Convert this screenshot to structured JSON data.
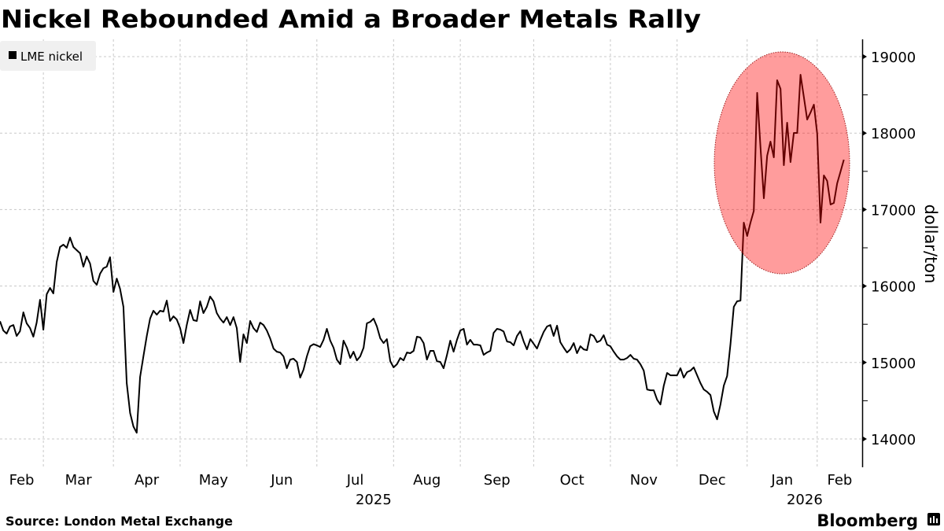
{
  "chart_data": {
    "type": "line",
    "title": "Nickel Rebounded Amid a Broader Metals Rally",
    "ylabel": "dollar/ton",
    "xlabel": "",
    "ylim": [
      13850,
      19200
    ],
    "y_axis_side": "right",
    "yticks": [
      14000,
      15000,
      16000,
      17000,
      18000,
      19000
    ],
    "xtick_labels": [
      "Feb",
      "Mar",
      "Apr",
      "May",
      "Jun",
      "Jul",
      "Aug",
      "Sep",
      "Oct",
      "Nov",
      "Dec",
      "Jan",
      "Feb"
    ],
    "year_labels": [
      "2025",
      "2026"
    ],
    "grid": true,
    "legend": {
      "position": "top-left",
      "entries": [
        "LME nickel"
      ]
    },
    "highlight": {
      "shape": "ellipse",
      "covers": [
        "2025-12-31",
        "2026-02-12"
      ],
      "color": "#ff0000"
    },
    "series": [
      {
        "name": "LME nickel",
        "color": "#000000",
        "points": [
          [
            "2025-02-12",
            15539
          ],
          [
            "2025-02-13",
            15419
          ],
          [
            "2025-02-14",
            15378
          ],
          [
            "2025-02-17",
            15471
          ],
          [
            "2025-02-18",
            15490
          ],
          [
            "2025-02-19",
            15347
          ],
          [
            "2025-02-20",
            15408
          ],
          [
            "2025-02-21",
            15656
          ],
          [
            "2025-02-24",
            15512
          ],
          [
            "2025-02-25",
            15450
          ],
          [
            "2025-02-26",
            15337
          ],
          [
            "2025-02-27",
            15522
          ],
          [
            "2025-02-28",
            15820
          ],
          [
            "2025-03-03",
            15429
          ],
          [
            "2025-03-04",
            15893
          ],
          [
            "2025-03-05",
            15975
          ],
          [
            "2025-03-06",
            15903
          ],
          [
            "2025-03-07",
            16315
          ],
          [
            "2025-03-10",
            16510
          ],
          [
            "2025-03-11",
            16541
          ],
          [
            "2025-03-12",
            16500
          ],
          [
            "2025-03-13",
            16634
          ],
          [
            "2025-03-14",
            16510
          ],
          [
            "2025-03-17",
            16469
          ],
          [
            "2025-03-18",
            16428
          ],
          [
            "2025-03-19",
            16253
          ],
          [
            "2025-03-20",
            16387
          ],
          [
            "2025-03-21",
            16294
          ],
          [
            "2025-03-24",
            16067
          ],
          [
            "2025-03-25",
            16016
          ],
          [
            "2025-03-26",
            16160
          ],
          [
            "2025-03-27",
            16232
          ],
          [
            "2025-03-28",
            16253
          ],
          [
            "2025-03-31",
            16377
          ],
          [
            "2025-04-01",
            15923
          ],
          [
            "2025-04-02",
            16098
          ],
          [
            "2025-04-03",
            15964
          ],
          [
            "2025-04-04",
            15728
          ],
          [
            "2025-04-07",
            14730
          ],
          [
            "2025-04-08",
            14339
          ],
          [
            "2025-04-09",
            14164
          ],
          [
            "2025-04-10",
            14081
          ],
          [
            "2025-04-11",
            14812
          ],
          [
            "2025-04-14",
            15080
          ],
          [
            "2025-04-15",
            15347
          ],
          [
            "2025-04-16",
            15574
          ],
          [
            "2025-04-17",
            15677
          ],
          [
            "2025-04-22",
            15625
          ],
          [
            "2025-04-23",
            15677
          ],
          [
            "2025-04-24",
            15666
          ],
          [
            "2025-04-25",
            15810
          ],
          [
            "2025-04-28",
            15543
          ],
          [
            "2025-04-29",
            15604
          ],
          [
            "2025-04-30",
            15563
          ],
          [
            "2025-05-01",
            15450
          ],
          [
            "2025-05-02",
            15254
          ],
          [
            "2025-05-06",
            15490
          ],
          [
            "2025-05-07",
            15687
          ],
          [
            "2025-05-08",
            15553
          ],
          [
            "2025-05-09",
            15543
          ],
          [
            "2025-05-12",
            15800
          ],
          [
            "2025-05-13",
            15646
          ],
          [
            "2025-05-14",
            15728
          ],
          [
            "2025-05-15",
            15862
          ],
          [
            "2025-05-16",
            15800
          ],
          [
            "2025-05-19",
            15646
          ],
          [
            "2025-05-20",
            15574
          ],
          [
            "2025-05-21",
            15522
          ],
          [
            "2025-05-22",
            15594
          ],
          [
            "2025-05-23",
            15490
          ],
          [
            "2025-05-27",
            15594
          ],
          [
            "2025-05-28",
            15450
          ],
          [
            "2025-05-29",
            15007
          ],
          [
            "2025-05-30",
            15368
          ],
          [
            "2025-06-02",
            15254
          ],
          [
            "2025-06-03",
            15543
          ],
          [
            "2025-06-04",
            15450
          ],
          [
            "2025-06-05",
            15399
          ],
          [
            "2025-06-06",
            15522
          ],
          [
            "2025-06-09",
            15490
          ],
          [
            "2025-06-10",
            15419
          ],
          [
            "2025-06-11",
            15316
          ],
          [
            "2025-06-12",
            15182
          ],
          [
            "2025-06-13",
            15141
          ],
          [
            "2025-06-16",
            15131
          ],
          [
            "2025-06-17",
            15080
          ],
          [
            "2025-06-18",
            14925
          ],
          [
            "2025-06-19",
            15038
          ],
          [
            "2025-06-20",
            15049
          ],
          [
            "2025-06-23",
            15007
          ],
          [
            "2025-06-24",
            14802
          ],
          [
            "2025-06-25",
            14905
          ],
          [
            "2025-06-26",
            15080
          ],
          [
            "2025-06-27",
            15213
          ],
          [
            "2025-06-30",
            15240
          ],
          [
            "2025-07-01",
            15224
          ],
          [
            "2025-07-02",
            15203
          ],
          [
            "2025-07-03",
            15296
          ],
          [
            "2025-07-04",
            15440
          ],
          [
            "2025-07-07",
            15286
          ],
          [
            "2025-07-08",
            15193
          ],
          [
            "2025-07-09",
            15038
          ],
          [
            "2025-07-10",
            14977
          ],
          [
            "2025-07-11",
            15286
          ],
          [
            "2025-07-14",
            15193
          ],
          [
            "2025-07-15",
            15059
          ],
          [
            "2025-07-16",
            15141
          ],
          [
            "2025-07-17",
            15028
          ],
          [
            "2025-07-18",
            15080
          ],
          [
            "2025-07-21",
            15193
          ],
          [
            "2025-07-22",
            15512
          ],
          [
            "2025-07-23",
            15532
          ],
          [
            "2025-07-24",
            15574
          ],
          [
            "2025-07-25",
            15471
          ],
          [
            "2025-07-28",
            15316
          ],
          [
            "2025-07-29",
            15254
          ],
          [
            "2025-07-30",
            15306
          ],
          [
            "2025-07-31",
            15018
          ],
          [
            "2025-08-01",
            14936
          ],
          [
            "2025-08-04",
            14977
          ],
          [
            "2025-08-05",
            15059
          ],
          [
            "2025-08-06",
            15028
          ],
          [
            "2025-08-07",
            15131
          ],
          [
            "2025-08-08",
            15121
          ],
          [
            "2025-08-11",
            15152
          ],
          [
            "2025-08-12",
            15337
          ],
          [
            "2025-08-13",
            15327
          ],
          [
            "2025-08-14",
            15254
          ],
          [
            "2025-08-15",
            15038
          ],
          [
            "2025-08-18",
            15152
          ],
          [
            "2025-08-19",
            15152
          ],
          [
            "2025-08-20",
            15018
          ],
          [
            "2025-08-21",
            15007
          ],
          [
            "2025-08-22",
            14925
          ],
          [
            "2025-08-26",
            15100
          ],
          [
            "2025-08-27",
            15286
          ],
          [
            "2025-08-28",
            15141
          ],
          [
            "2025-08-29",
            15296
          ],
          [
            "2025-09-01",
            15419
          ],
          [
            "2025-09-02",
            15440
          ],
          [
            "2025-09-03",
            15234
          ],
          [
            "2025-09-04",
            15296
          ],
          [
            "2025-09-05",
            15234
          ],
          [
            "2025-09-08",
            15234
          ],
          [
            "2025-09-09",
            15224
          ],
          [
            "2025-09-10",
            15100
          ],
          [
            "2025-09-11",
            15131
          ],
          [
            "2025-09-12",
            15152
          ],
          [
            "2025-09-15",
            15388
          ],
          [
            "2025-09-16",
            15440
          ],
          [
            "2025-09-17",
            15430
          ],
          [
            "2025-09-18",
            15405
          ],
          [
            "2025-09-19",
            15275
          ],
          [
            "2025-09-22",
            15265
          ],
          [
            "2025-09-23",
            15224
          ],
          [
            "2025-09-24",
            15347
          ],
          [
            "2025-09-25",
            15409
          ],
          [
            "2025-09-26",
            15275
          ],
          [
            "2025-09-29",
            15172
          ],
          [
            "2025-09-30",
            15306
          ],
          [
            "2025-10-01",
            15244
          ],
          [
            "2025-10-02",
            15182
          ],
          [
            "2025-10-03",
            15296
          ],
          [
            "2025-10-06",
            15399
          ],
          [
            "2025-10-07",
            15471
          ],
          [
            "2025-10-08",
            15490
          ],
          [
            "2025-10-09",
            15347
          ],
          [
            "2025-10-10",
            15481
          ],
          [
            "2025-10-13",
            15265
          ],
          [
            "2025-10-14",
            15193
          ],
          [
            "2025-10-15",
            15131
          ],
          [
            "2025-10-16",
            15172
          ],
          [
            "2025-10-17",
            15254
          ],
          [
            "2025-10-20",
            15121
          ],
          [
            "2025-10-21",
            15213
          ],
          [
            "2025-10-22",
            15172
          ],
          [
            "2025-10-23",
            15162
          ],
          [
            "2025-10-24",
            15368
          ],
          [
            "2025-10-27",
            15347
          ],
          [
            "2025-10-28",
            15265
          ],
          [
            "2025-10-29",
            15286
          ],
          [
            "2025-10-30",
            15357
          ],
          [
            "2025-10-31",
            15234
          ],
          [
            "2025-11-03",
            15213
          ],
          [
            "2025-11-04",
            15141
          ],
          [
            "2025-11-05",
            15080
          ],
          [
            "2025-11-06",
            15038
          ],
          [
            "2025-11-07",
            15038
          ],
          [
            "2025-11-10",
            15059
          ],
          [
            "2025-11-11",
            15100
          ],
          [
            "2025-11-12",
            15049
          ],
          [
            "2025-11-13",
            15038
          ],
          [
            "2025-11-14",
            14977
          ],
          [
            "2025-11-17",
            14894
          ],
          [
            "2025-11-18",
            14647
          ],
          [
            "2025-11-19",
            14637
          ],
          [
            "2025-11-20",
            14637
          ],
          [
            "2025-11-21",
            14513
          ],
          [
            "2025-11-24",
            14451
          ],
          [
            "2025-11-25",
            14698
          ],
          [
            "2025-11-26",
            14863
          ],
          [
            "2025-11-27",
            14832
          ],
          [
            "2025-11-28",
            14832
          ],
          [
            "2025-12-01",
            14832
          ],
          [
            "2025-12-02",
            14925
          ],
          [
            "2025-12-03",
            14802
          ],
          [
            "2025-12-04",
            14874
          ],
          [
            "2025-12-05",
            14894
          ],
          [
            "2025-12-08",
            14936
          ],
          [
            "2025-12-09",
            14832
          ],
          [
            "2025-12-10",
            14730
          ],
          [
            "2025-12-11",
            14647
          ],
          [
            "2025-12-12",
            14616
          ],
          [
            "2025-12-15",
            14575
          ],
          [
            "2025-12-16",
            14359
          ],
          [
            "2025-12-17",
            14256
          ],
          [
            "2025-12-18",
            14450
          ],
          [
            "2025-12-19",
            14698
          ],
          [
            "2025-12-22",
            14822
          ],
          [
            "2025-12-23",
            15244
          ],
          [
            "2025-12-24",
            15728
          ],
          [
            "2025-12-29",
            15800
          ],
          [
            "2025-12-30",
            15810
          ],
          [
            "2025-12-31",
            16829
          ],
          [
            "2026-01-02",
            16654
          ],
          [
            "2026-01-05",
            16829
          ],
          [
            "2026-01-06",
            16983
          ],
          [
            "2026-01-07",
            18527
          ],
          [
            "2026-01-08",
            17818
          ],
          [
            "2026-01-09",
            17148
          ],
          [
            "2026-01-12",
            17704
          ],
          [
            "2026-01-13",
            17889
          ],
          [
            "2026-01-14",
            17683
          ],
          [
            "2026-01-15",
            18691
          ],
          [
            "2026-01-16",
            18578
          ],
          [
            "2026-01-19",
            17580
          ],
          [
            "2026-01-20",
            18136
          ],
          [
            "2026-01-21",
            17621
          ],
          [
            "2026-01-22",
            18002
          ],
          [
            "2026-01-23",
            18002
          ],
          [
            "2026-01-26",
            18763
          ],
          [
            "2026-01-27",
            18475
          ],
          [
            "2026-01-28",
            18177
          ],
          [
            "2026-01-29",
            18269
          ],
          [
            "2026-01-30",
            18372
          ],
          [
            "2026-02-02",
            17992
          ],
          [
            "2026-02-03",
            16829
          ],
          [
            "2026-02-04",
            17447
          ],
          [
            "2026-02-05",
            17374
          ],
          [
            "2026-02-06",
            17066
          ],
          [
            "2026-02-09",
            17086
          ],
          [
            "2026-02-10",
            17343
          ],
          [
            "2026-02-11",
            17498
          ],
          [
            "2026-02-12",
            17652
          ]
        ]
      }
    ]
  },
  "legend": {
    "label": "LME nickel"
  },
  "header": {
    "title": "Nickel Rebounded Amid a Broader Metals Rally"
  },
  "footer": {
    "source": "Source: London Metal Exchange",
    "brand": "Bloomberg"
  },
  "axis": {
    "y_unit": "dollar/ton",
    "y_tick_labels": [
      "14000",
      "15000",
      "16000",
      "17000",
      "18000",
      "19000"
    ],
    "months": [
      "Feb",
      "Mar",
      "Apr",
      "May",
      "Jun",
      "Jul",
      "Aug",
      "Sep",
      "Oct",
      "Nov",
      "Dec",
      "Jan",
      "Feb"
    ],
    "years": [
      "2025",
      "2026"
    ]
  },
  "colors": {
    "line": "#000000",
    "highlight_fill": "#ff0000",
    "highlight_stroke": "#a02020",
    "grid": "#c8c8c8",
    "legend_bg": "#f0f0f0"
  }
}
